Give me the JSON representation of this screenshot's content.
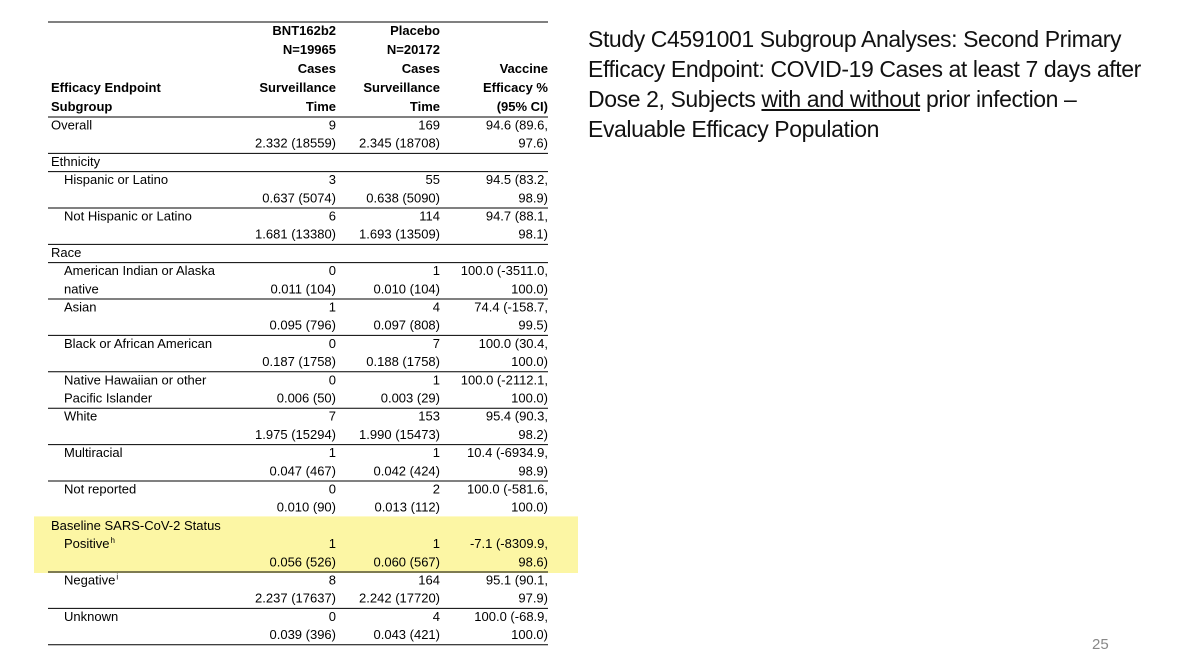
{
  "title": {
    "parts": [
      "Study C4591001 Subgroup Analyses: Second Primary Efficacy Endpoint: COVID-19 Cases at least 7 days after Dose 2, Subjects ",
      "with and without",
      " prior infection – Evaluable Efficacy Population"
    ]
  },
  "table": {
    "header": [
      [
        "Efficacy Endpoint",
        "Subgroup"
      ],
      [
        "BNT162b2",
        "N=19965",
        "Cases",
        "Surveillance",
        "Time"
      ],
      [
        "Placebo",
        "N=20172",
        "Cases",
        "Surveillance",
        "Time"
      ],
      [
        "Vaccine",
        "Efficacy %",
        "(95% CI)"
      ]
    ],
    "rows": [
      {
        "label": [
          "Overall"
        ],
        "bnt": [
          "9",
          "2.332 (18559)"
        ],
        "placebo": [
          "169",
          "2.345 (18708)"
        ],
        "ve": [
          "94.6 (89.6,",
          "97.6)"
        ]
      },
      {
        "label": [
          "Ethnicity"
        ]
      },
      {
        "label": [
          "Hispanic or Latino"
        ],
        "bnt": [
          "3",
          "0.637 (5074)"
        ],
        "placebo": [
          "55",
          "0.638 (5090)"
        ],
        "ve": [
          "94.5 (83.2,",
          "98.9)"
        ]
      },
      {
        "label": [
          "Not Hispanic or Latino"
        ],
        "bnt": [
          "6",
          "1.681 (13380)"
        ],
        "placebo": [
          "114",
          "1.693 (13509)"
        ],
        "ve": [
          "94.7 (88.1,",
          "98.1)"
        ]
      },
      {
        "label": [
          "Race"
        ]
      },
      {
        "label": [
          "American Indian or Alaska",
          "native"
        ],
        "bnt": [
          "0",
          "0.011 (104)"
        ],
        "placebo": [
          "1",
          "0.010 (104)"
        ],
        "ve": [
          "100.0 (-3511.0,",
          "100.0)"
        ]
      },
      {
        "label": [
          "Asian"
        ],
        "bnt": [
          "1",
          "0.095 (796)"
        ],
        "placebo": [
          "4",
          "0.097 (808)"
        ],
        "ve": [
          "74.4 (-158.7,",
          "99.5)"
        ]
      },
      {
        "label": [
          "Black or African American"
        ],
        "bnt": [
          "0",
          "0.187 (1758)"
        ],
        "placebo": [
          "7",
          "0.188 (1758)"
        ],
        "ve": [
          "100.0 (30.4,",
          "100.0)"
        ]
      },
      {
        "label": [
          "Native Hawaiian or other",
          "Pacific Islander"
        ],
        "bnt": [
          "0",
          "0.006 (50)"
        ],
        "placebo": [
          "1",
          "0.003 (29)"
        ],
        "ve": [
          "100.0 (-2112.1,",
          "100.0)"
        ]
      },
      {
        "label": [
          "White"
        ],
        "bnt": [
          "7",
          "1.975 (15294)"
        ],
        "placebo": [
          "153",
          "1.990 (15473)"
        ],
        "ve": [
          "95.4 (90.3,",
          "98.2)"
        ]
      },
      {
        "label": [
          "Multiracial"
        ],
        "bnt": [
          "1",
          "0.047 (467)"
        ],
        "placebo": [
          "1",
          "0.042 (424)"
        ],
        "ve": [
          "10.4 (-6934.9,",
          "98.9)"
        ]
      },
      {
        "label": [
          "Not reported"
        ],
        "bnt": [
          "0",
          "0.010 (90)"
        ],
        "placebo": [
          "2",
          "0.013 (112)"
        ],
        "ve": [
          "100.0 (-581.6,",
          "100.0)"
        ]
      },
      {
        "label": [
          "Baseline SARS-CoV-2 Status"
        ],
        "highlight": true
      },
      {
        "label": [
          "Positive"
        ],
        "note": "h",
        "highlight": true,
        "bnt": [
          "1",
          "0.056 (526)"
        ],
        "placebo": [
          "1",
          "0.060 (567)"
        ],
        "ve": [
          "-7.1 (-8309.9,",
          "98.6)"
        ]
      },
      {
        "label": [
          "Negative"
        ],
        "note": "i",
        "bnt": [
          "8",
          "2.237 (17637)"
        ],
        "placebo": [
          "164",
          "2.242 (17720)"
        ],
        "ve": [
          "95.1 (90.1,",
          "97.9)"
        ]
      },
      {
        "label": [
          "Unknown"
        ],
        "bnt": [
          "0",
          "0.039 (396)"
        ],
        "placebo": [
          "4",
          "0.043 (421)"
        ],
        "ve": [
          "100.0 (-68.9,",
          "100.0)"
        ]
      }
    ]
  },
  "page_number": "25"
}
